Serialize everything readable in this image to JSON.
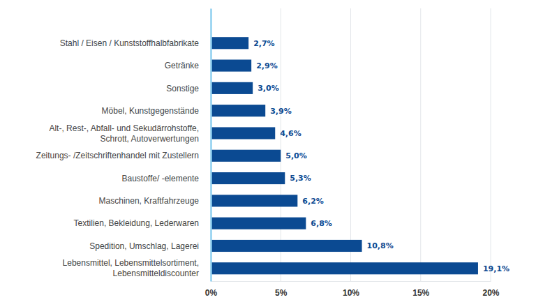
{
  "chart_data": {
    "type": "bar",
    "orientation": "horizontal",
    "categories": [
      "Stahl / Eisen / Kunststoffhalbfabrikate",
      "Getränke",
      "Sonstige",
      "Möbel, Kunstgegenstände",
      "Alt-, Rest-, Abfall- und Sekudärrohstoffe,\nSchrott, Autoverwertungen",
      "Zeitungs- /Zeitschriftenhandel mit Zustellern",
      "Baustoffe/ -elemente",
      "Maschinen, Kraftfahrzeuge",
      "Textilien, Bekleidung, Lederwaren",
      "Spedition, Umschlag, Lagerei",
      "Lebensmittel, Lebensmittelsortiment,\nLebensmitteldiscounter"
    ],
    "values": [
      2.7,
      2.9,
      3.0,
      3.9,
      4.6,
      5.0,
      5.3,
      6.2,
      6.8,
      10.8,
      19.1
    ],
    "value_labels": [
      "2,7%",
      "2,9%",
      "3,0%",
      "3,9%",
      "4,6%",
      "5,0%",
      "5,3%",
      "6,2%",
      "6,8%",
      "10,8%",
      "19,1%"
    ],
    "data_labels": true,
    "color": "#0b4a92",
    "xlim": [
      0,
      20
    ],
    "xticks": [
      {
        "value": 0,
        "label": "0%"
      },
      {
        "value": 5,
        "label": "5%"
      },
      {
        "value": 10,
        "label": "10%"
      },
      {
        "value": 15,
        "label": "15%"
      },
      {
        "value": 20,
        "label": "20%"
      }
    ],
    "grid": true
  }
}
